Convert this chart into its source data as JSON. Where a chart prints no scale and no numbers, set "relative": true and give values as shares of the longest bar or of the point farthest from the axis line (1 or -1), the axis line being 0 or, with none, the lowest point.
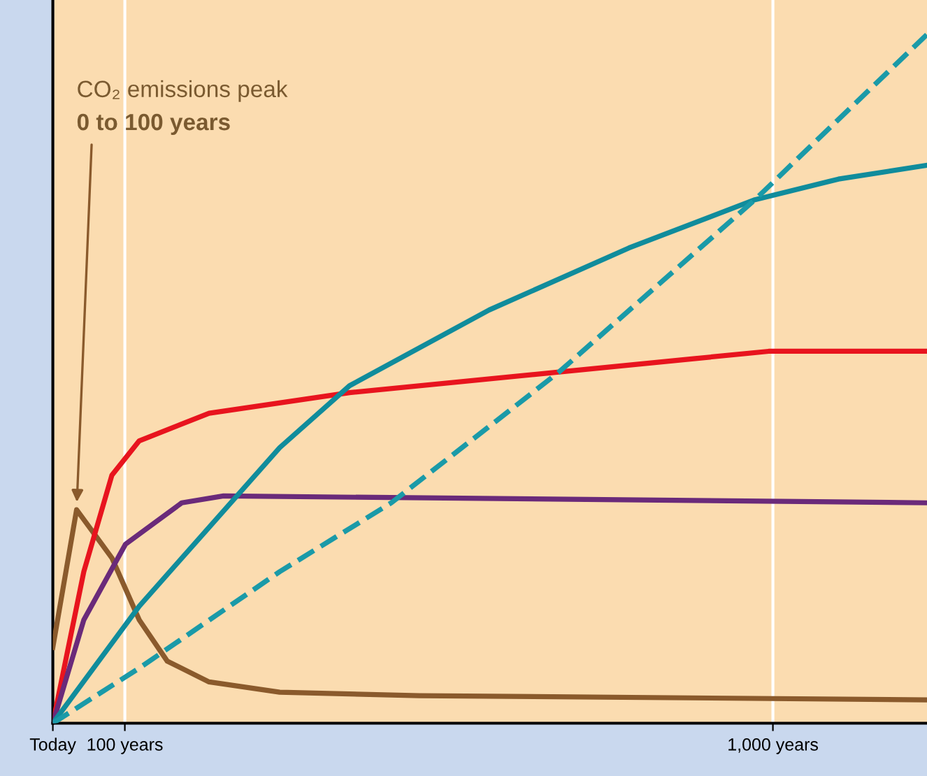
{
  "chart_data": {
    "type": "line",
    "relative": true,
    "xlim": [
      0,
      1214
    ],
    "xticks": [
      {
        "value": 0,
        "label": "Today"
      },
      {
        "value": 100,
        "label": "100 years"
      },
      {
        "value": 1000,
        "label": "1,000 years"
      }
    ],
    "grid": "x",
    "tick_labels": "x",
    "legend": false,
    "annotations": [
      "CO₂ emissions peak",
      {
        "text": "0 to 100 years",
        "x": 33,
        "y": 0.31
      }
    ],
    "series": [
      {
        "color": "#8a5a2c",
        "x": [
          0,
          33,
          82,
          120,
          159,
          217,
          315,
          509,
          1214
        ],
        "values": [
          0.11,
          0.31,
          0.24,
          0.15,
          0.09,
          0.06,
          0.045,
          0.04,
          0.034
        ]
      },
      {
        "color": "#e8141e",
        "x": [
          0,
          43,
          82,
          120,
          217,
          412,
          703,
          994,
          1214
        ],
        "values": [
          0,
          0.22,
          0.36,
          0.41,
          0.45,
          0.48,
          0.51,
          0.54,
          0.54
        ]
      },
      {
        "color": "#6a2a7a",
        "x": [
          0,
          43,
          101,
          179,
          237,
          1214
        ],
        "values": [
          0,
          0.15,
          0.26,
          0.32,
          0.33,
          0.32
        ]
      },
      {
        "color": "#108c9c",
        "x": [
          0,
          120,
          315,
          412,
          606,
          800,
          975,
          1091,
          1214
        ],
        "values": [
          0,
          0.17,
          0.4,
          0.49,
          0.6,
          0.69,
          0.76,
          0.79,
          0.81
        ]
      },
      {
        "color": "#1a9aa8",
        "line_style": "dashed",
        "x": [
          0,
          120,
          315,
          470,
          703,
          975,
          1214
        ],
        "values": [
          0,
          0.08,
          0.22,
          0.32,
          0.51,
          0.76,
          1
        ]
      }
    ]
  }
}
